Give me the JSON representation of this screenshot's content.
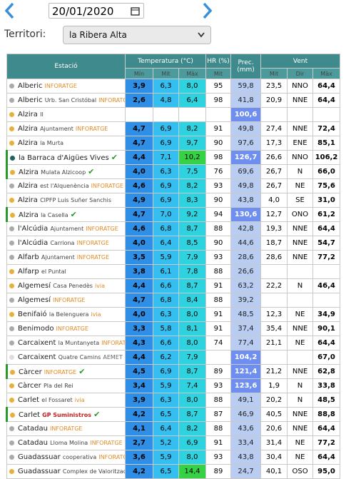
{
  "header": {
    "date": "20/01/2020",
    "territory_label": "Territori:",
    "territory": "la Ribera Alta"
  },
  "table": {
    "headers": {
      "station": "Estació",
      "temp": "Temperatura (°C)",
      "min": "Mín",
      "mit": "Mit",
      "max": "Màx",
      "hr": "HR (%)",
      "hr_mit": "Mit",
      "prec": "Prec. (mm)",
      "vent": "Vent",
      "vent_mit": "Mit",
      "dir": "Dir",
      "vent_max": "Màx"
    },
    "rows": [
      {
        "dot": "#aaaaaa",
        "name": "Alberic",
        "tag": "INFORATGE",
        "min": "3,9",
        "mit": "6,3",
        "max": "8,0",
        "hr": "95",
        "prec": "59,8",
        "vmit": "23,5",
        "dir": "NNO",
        "vmax": "64,4"
      },
      {
        "dot": "#aaaaaa",
        "name": "Alberic",
        "sub": "Urb. San Cristóbal",
        "tag": "INFORATGE",
        "min": "2,6",
        "mit": "4,8",
        "max": "6,4",
        "hr": "98",
        "prec": "41,8",
        "vmit": "20,9",
        "dir": "NNE",
        "vmax": "64,4"
      },
      {
        "dot": "#e8b03a",
        "name": "Alzira",
        "sub": "II",
        "min": null,
        "mit": null,
        "max": null,
        "hr": null,
        "prec": "100,6",
        "vmit": null,
        "dir": null,
        "vmax": null
      },
      {
        "dot": "#e8b03a",
        "name": "Alzira",
        "sub": "Ajuntament",
        "tag": "INFORATGE",
        "min": "4,7",
        "mit": "6,9",
        "max": "8,2",
        "hr": "91",
        "prec": "49,8",
        "vmit": "27,4",
        "dir": "NNE",
        "vmax": "72,4"
      },
      {
        "dot": "#e8b03a",
        "name": "Alzira",
        "sub": "la Murta",
        "min": "4,7",
        "mit": "6,9",
        "max": "9,7",
        "hr": "90",
        "prec": "97,6",
        "vmit": "17,3",
        "dir": "ENE",
        "vmax": "85,1"
      },
      {
        "dot": "#1f5f5f",
        "name": "la Barraca d'Aigües Vives",
        "check": true,
        "min": "4,4",
        "mit": "7,1",
        "max": "10,2",
        "hr": "98",
        "prec": "126,7",
        "vmit": "26,6",
        "dir": "NNO",
        "vmax": "106,2"
      },
      {
        "dot": "#e8b03a",
        "name": "Alzira",
        "sub": "Mulata Alzicoop",
        "check": true,
        "min": "4,0",
        "mit": "6,3",
        "max": "7,5",
        "hr": "76",
        "prec": "69,6",
        "vmit": "26,7",
        "dir": "N",
        "vmax": "66,0"
      },
      {
        "dot": "#aaaaaa",
        "name": "Alzira",
        "sub": "est l'Alquenència",
        "tag": "INFORATGE",
        "min": "4,6",
        "mit": "6,9",
        "max": "8,2",
        "hr": "93",
        "prec": "49,8",
        "vmit": "26,7",
        "dir": "NE",
        "vmax": "75,6"
      },
      {
        "dot": "#e8b03a",
        "name": "Alzira",
        "sub": "CIPFP Luis Suñer Sanchis",
        "min": "4,9",
        "mit": "6,9",
        "max": "8,3",
        "hr": "90",
        "prec": "43,8",
        "vmit": "4,0",
        "dir": "SE",
        "vmax": "31,0"
      },
      {
        "dot": "#e8b03a",
        "name": "Alzira",
        "sub": "la Casella",
        "check": true,
        "min": "4,7",
        "mit": "7,0",
        "max": "9,2",
        "hr": "94",
        "prec": "130,6",
        "vmit": "12,7",
        "dir": "ONO",
        "vmax": "61,2"
      },
      {
        "dot": "#aaaaaa",
        "name": "l'Alcúdia",
        "sub": "Ajuntament",
        "tag": "INFORATGE",
        "min": "4,6",
        "mit": "6,8",
        "max": "8,7",
        "hr": "88",
        "prec": "42,8",
        "vmit": "19,3",
        "dir": "NNE",
        "vmax": "64,4"
      },
      {
        "dot": "#aaaaaa",
        "name": "l'Alcúdia",
        "sub": "Carriona",
        "tag": "INFORATGE",
        "min": "4,0",
        "mit": "6,4",
        "max": "8,5",
        "hr": "90",
        "prec": "44,6",
        "vmit": "18,7",
        "dir": "NNE",
        "vmax": "54,7"
      },
      {
        "dot": "#aaaaaa",
        "name": "Alfarb",
        "sub": "Ajuntament",
        "tag": "INFORATGE",
        "min": "3,5",
        "mit": "5,9",
        "max": "7,9",
        "hr": "93",
        "prec": "28,6",
        "vmit": "28,6",
        "dir": "NNE",
        "vmax": "77,2"
      },
      {
        "dot": "#e8b03a",
        "name": "Alfarp",
        "sub": "el Puntal",
        "min": "3,8",
        "mit": "6,1",
        "max": "7,8",
        "hr": "88",
        "prec": "26,6",
        "vmit": null,
        "dir": null,
        "vmax": null
      },
      {
        "dot": "#e8b03a",
        "name": "Algemesí",
        "sub": "Casa Penedès",
        "tag": "ivia",
        "min": "4,4",
        "mit": "6,6",
        "max": "8,7",
        "hr": "91",
        "prec": "63,2",
        "vmit": "22,2",
        "dir": "N",
        "vmax": "46,4"
      },
      {
        "dot": "#aaaaaa",
        "name": "Algemesí",
        "tag": "INFORATGE",
        "min": "4,7",
        "mit": "6,8",
        "max": "8,4",
        "hr": "88",
        "prec": "39,2",
        "vmit": null,
        "dir": null,
        "vmax": null
      },
      {
        "dot": "#e8b03a",
        "name": "Benifaió",
        "sub": "la Belenguera",
        "tag": "ivia",
        "min": "4,0",
        "mit": "6,3",
        "max": "8,0",
        "hr": "91",
        "prec": "48,5",
        "vmit": "12,3",
        "dir": "NE",
        "vmax": "34,9"
      },
      {
        "dot": "#aaaaaa",
        "name": "Benimodo",
        "tag": "INFORATGE",
        "min": "3,3",
        "mit": "5,8",
        "max": "8,1",
        "hr": "91",
        "prec": "37,4",
        "vmit": "35,4",
        "dir": "NNE",
        "vmax": "90,1"
      },
      {
        "dot": "#aaaaaa",
        "name": "Carcaixent",
        "sub": "la Muntanyeta",
        "tag": "INFORATGE",
        "min": "4,3",
        "mit": "6,6",
        "max": "8,0",
        "hr": "74",
        "prec": "77,4",
        "vmit": "21,1",
        "dir": "NE",
        "vmax": "64,4"
      },
      {
        "dot": "#dddddd",
        "name": "Carcaixent",
        "sub": "Quatre Camins",
        "tag": "AEMET",
        "min": "4,4",
        "mit": "6,2",
        "max": "7,9",
        "hr": null,
        "prec": "104,2",
        "vmit": null,
        "dir": null,
        "vmax": "67,0"
      },
      {
        "dot": "#e8b03a",
        "name": "Càrcer",
        "tag": "INFORATGE",
        "check": true,
        "min": "4,5",
        "mit": "6,9",
        "max": "8,7",
        "hr": "89",
        "prec": "121,4",
        "vmit": "21,2",
        "dir": "NNE",
        "vmax": "62,8"
      },
      {
        "dot": "#e8b03a",
        "name": "Càrcer",
        "sub": "Pla del Rei",
        "min": "3,4",
        "mit": "5,9",
        "max": "7,4",
        "hr": "93",
        "prec": "123,6",
        "vmit": "1,9",
        "dir": "N",
        "vmax": "33,8"
      },
      {
        "dot": "#e8b03a",
        "name": "Carlet",
        "sub": "el Fossaret",
        "tag": "ivia",
        "min": "3,9",
        "mit": "6,3",
        "max": "8,0",
        "hr": "88",
        "prec": "49,1",
        "vmit": "20,2",
        "dir": "N",
        "vmax": "48,5"
      },
      {
        "dot": "#e8b03a",
        "name": "Carlet",
        "tag": "GP Suministros",
        "check": true,
        "min": "4,2",
        "mit": "6,5",
        "max": "8,7",
        "hr": "87",
        "prec": "46,9",
        "vmit": "40,5",
        "dir": "NNE",
        "vmax": "88,8"
      },
      {
        "dot": "#aaaaaa",
        "name": "Catadau",
        "tag": "INFORATGE",
        "min": "4,1",
        "mit": "6,4",
        "max": "8,2",
        "hr": "88",
        "prec": "43,6",
        "vmit": "20,6",
        "dir": "NNE",
        "vmax": "64,4"
      },
      {
        "dot": "#aaaaaa",
        "name": "Catadau",
        "sub": "Lloma Molina",
        "tag": "INFORATGE",
        "min": "2,7",
        "mit": "5,2",
        "max": "6,9",
        "hr": "91",
        "prec": "33,4",
        "vmit": "31,4",
        "dir": "NE",
        "vmax": "77,2"
      },
      {
        "dot": "#aaaaaa",
        "name": "Guadassuar",
        "sub": "cooperativa",
        "tag": "INFORATGE",
        "min": "3,6",
        "mit": "5,9",
        "max": "8,0",
        "hr": "93",
        "prec": "43,8",
        "vmit": "30,4",
        "dir": "NE",
        "vmax": "64,4"
      },
      {
        "dot": "#e8b03a",
        "name": "Guadassuar",
        "sub": "Complex de Valorització",
        "min": "4,2",
        "mit": "6,5",
        "max": "14,4",
        "hr": "89",
        "prec": "24,7",
        "vmit": "40,1",
        "dir": "OSO",
        "vmax": "95,0"
      }
    ]
  }
}
